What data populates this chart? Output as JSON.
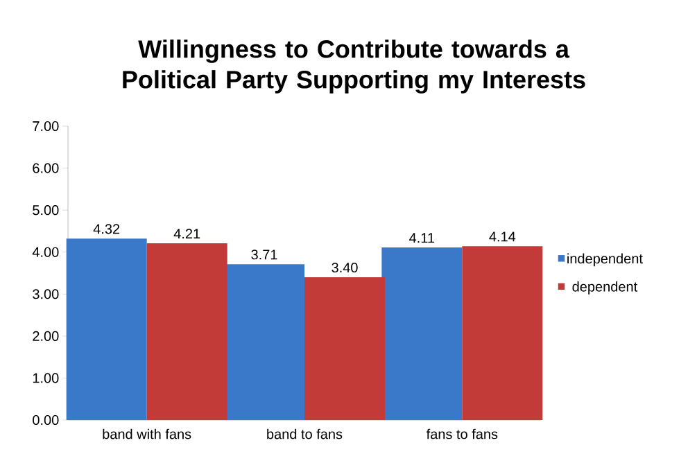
{
  "chart_data": {
    "type": "bar",
    "title": "Willingness to Contribute towards a Political Party Supporting my Interests",
    "categories": [
      "band with fans",
      "band to fans",
      "fans to fans"
    ],
    "series": [
      {
        "name": "independent",
        "color": "#3a78c9",
        "values": [
          4.32,
          3.71,
          4.11
        ],
        "value_labels": [
          "4.32",
          "3.71",
          "4.11"
        ]
      },
      {
        "name": "dependent",
        "color": "#c23b39",
        "values": [
          4.21,
          3.4,
          4.14
        ],
        "value_labels": [
          "4.21",
          "3.40",
          "4.14"
        ]
      }
    ],
    "ylim": [
      0,
      7
    ],
    "yticks": [
      {
        "value": 0,
        "label": "0.00"
      },
      {
        "value": 1,
        "label": "1.00"
      },
      {
        "value": 2,
        "label": "2.00"
      },
      {
        "value": 3,
        "label": "3.00"
      },
      {
        "value": 4,
        "label": "4.00"
      },
      {
        "value": 5,
        "label": "5.00"
      },
      {
        "value": 6,
        "label": "6.00"
      },
      {
        "value": 7,
        "label": "7.00"
      }
    ],
    "grid": false,
    "legend": "right"
  }
}
